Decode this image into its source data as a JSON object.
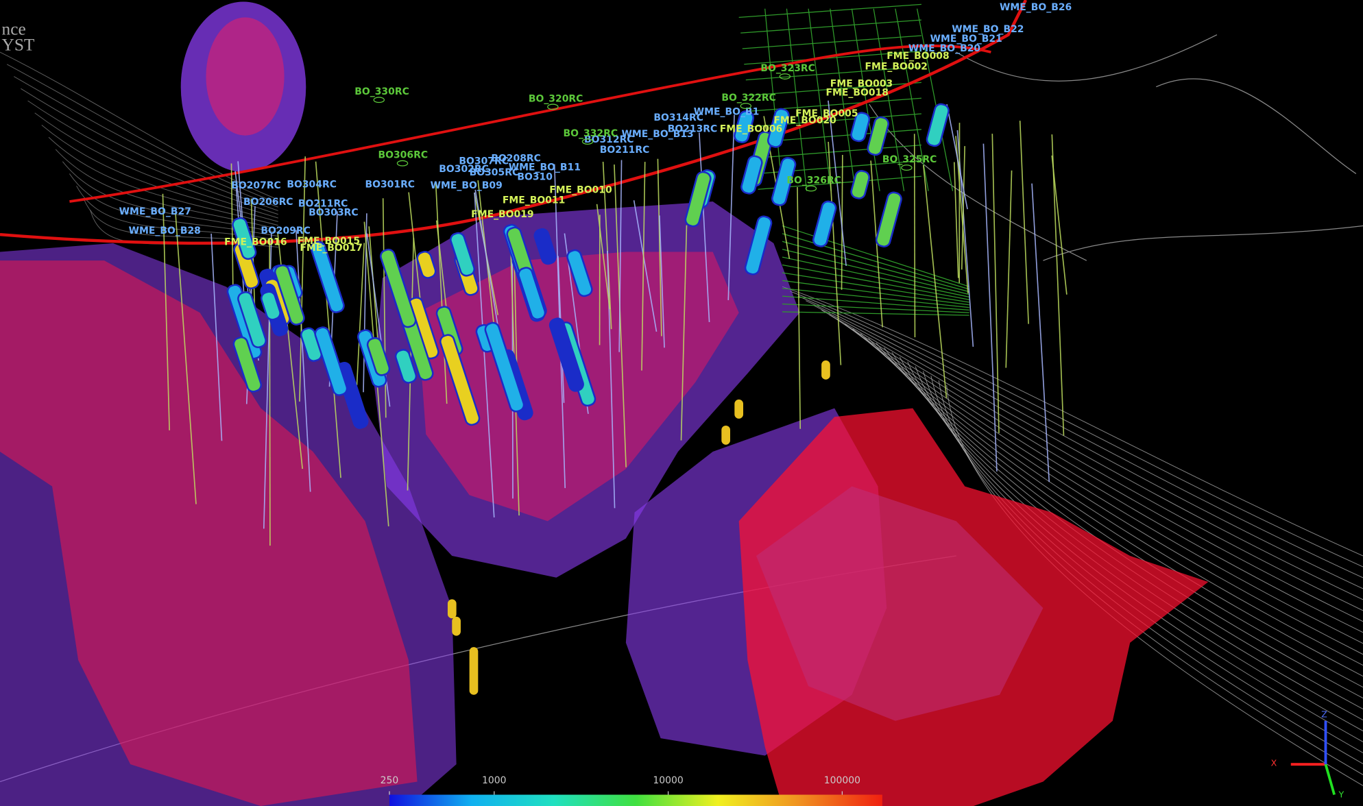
{
  "corner_text": [
    "nce",
    "YST"
  ],
  "label_groups": [
    {
      "color": "#6aaeff",
      "labels": [
        "WME_BO_B26",
        "WME_BO_B22",
        "WME_BO_B21",
        "WME_BO_B20",
        "WME_BO_B1",
        "BO314RC",
        "WME_BO_B13",
        "BO213RC",
        "BO312RC",
        "BO211RC",
        "BO208RC",
        "BO307RC",
        "WME_BO_B11",
        "BO302RC",
        "BO305RC",
        "BO310",
        "BO207RC",
        "BO304RC",
        "BO301RC",
        "WME_BO_B09",
        "BO206RC",
        "BO211RC",
        "BO303RC",
        "WME_BO_B27",
        "WME_BO_B28",
        "BO209RC"
      ]
    },
    {
      "color": "#d4f25a",
      "labels": [
        "FME_BO008",
        "FME_BO002",
        "FME_BO003",
        "FME_BO018",
        "FME_BO005",
        "FME_BO020",
        "FME_BO006",
        "FME_BO010",
        "FME_BO011",
        "FME_BO019",
        "FME_BO015",
        "FME_BO016",
        "FME_BO017"
      ]
    },
    {
      "color": "#5cc83a",
      "labels": [
        "BO_323RC",
        "BO_330RC",
        "BO_320RC",
        "BO_322RC",
        "BO_332RC",
        "BO306RC",
        "BO_325RC",
        "BO_326RC"
      ]
    }
  ],
  "colorbar": {
    "log": true,
    "range": [
      250,
      170000
    ],
    "ticks": [
      250,
      1000,
      10000,
      100000
    ],
    "colors": [
      "#1010e0",
      "#10b0f0",
      "#20e0c0",
      "#40e040",
      "#f0f020",
      "#f09020",
      "#f02010"
    ]
  },
  "axis_triad": [
    "X",
    "Y",
    "Z"
  ]
}
